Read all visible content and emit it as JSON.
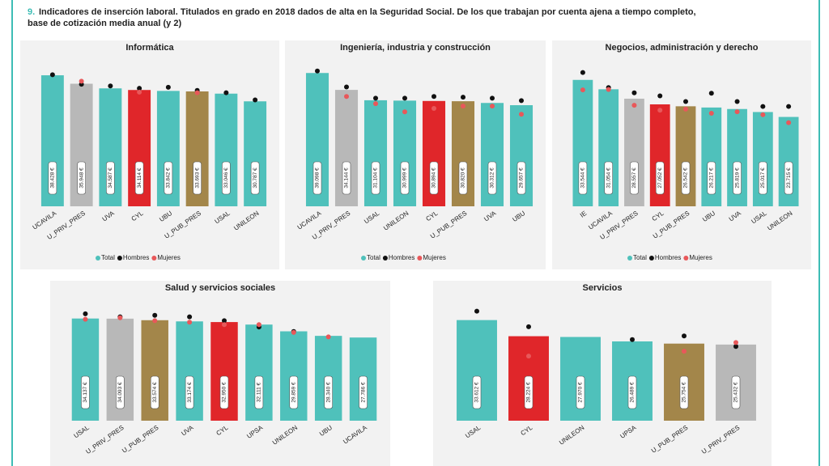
{
  "header": {
    "number": "9.",
    "lines": [
      "Indicadores de inserción laboral. Titulados en grado en 2018 dados de alta en la Seguridad Social. De los que trabajan por cuenta ajena a tiempo completo,",
      "base de cotización media anual (y 2)"
    ]
  },
  "chart_data": [
    {
      "type": "bar",
      "title": "Informática",
      "legend": true,
      "ylim": [
        0,
        42000
      ],
      "categories": [
        "UCAVILA",
        "U_PRIV_PRES",
        "UVA",
        "CYL",
        "UBU",
        "U_PUB_PRES",
        "USAL",
        "UNILEON"
      ],
      "series": [
        {
          "name": "Total",
          "color": "#4fc1bb",
          "colors": [
            "#4fc1bb",
            "#b8b8b8",
            "#4fc1bb",
            "#e0262a",
            "#4fc1bb",
            "#a3864a",
            "#4fc1bb",
            "#4fc1bb"
          ],
          "values": [
            38428,
            35948,
            34587,
            34114,
            33842,
            33693,
            33046,
            30787
          ],
          "value_labels": [
            "38.428 €",
            "35.948 €",
            "34.587 €",
            "34.114 €",
            "33.842 €",
            "33.693 €",
            "33.046 €",
            "30.787 €"
          ]
        },
        {
          "name": "Hombres",
          "color": "#111111",
          "values": [
            38600,
            35800,
            35300,
            34600,
            34900,
            34000,
            33300,
            31200
          ]
        },
        {
          "name": "Mujeres",
          "color": "#e8585a",
          "values": [
            null,
            36700,
            null,
            33500,
            null,
            33300,
            null,
            null
          ]
        }
      ]
    },
    {
      "type": "bar",
      "title": "Ingeniería, industria y construcción",
      "legend": true,
      "ylim": [
        0,
        42000
      ],
      "categories": [
        "UCAVILA",
        "U_PRIV_PRES",
        "USAL",
        "UNILEON",
        "CYL",
        "U_PUB_PRES",
        "UVA",
        "UBU"
      ],
      "series": [
        {
          "name": "Total",
          "color": "#4fc1bb",
          "colors": [
            "#4fc1bb",
            "#b8b8b8",
            "#4fc1bb",
            "#4fc1bb",
            "#e0262a",
            "#a3864a",
            "#4fc1bb",
            "#4fc1bb"
          ],
          "values": [
            39098,
            34144,
            31104,
            30999,
            30894,
            30820,
            30312,
            29657
          ],
          "value_labels": [
            "39.098 €",
            "34.144 €",
            "31.104 €",
            "30.999 €",
            "30.894 €",
            "30.820 €",
            "30.312 €",
            "29.657 €"
          ]
        },
        {
          "name": "Hombres",
          "color": "#111111",
          "values": [
            39700,
            35000,
            31700,
            31700,
            32200,
            32000,
            31700,
            31000
          ]
        },
        {
          "name": "Mujeres",
          "color": "#e8585a",
          "values": [
            null,
            32200,
            30100,
            27700,
            28700,
            29400,
            29400,
            27000
          ]
        }
      ]
    },
    {
      "type": "bar",
      "title": "Negocios, administración y derecho",
      "legend": true,
      "ylim": [
        0,
        38000
      ],
      "categories": [
        "IE",
        "UCAVILA",
        "U_PRIV_PRES",
        "CYL",
        "U_PUB_PRES",
        "UBU",
        "UVA",
        "USAL",
        "UNILEON"
      ],
      "series": [
        {
          "name": "Total",
          "color": "#4fc1bb",
          "colors": [
            "#4fc1bb",
            "#4fc1bb",
            "#b8b8b8",
            "#e0262a",
            "#a3864a",
            "#4fc1bb",
            "#4fc1bb",
            "#4fc1bb",
            "#4fc1bb"
          ],
          "values": [
            33544,
            31054,
            28557,
            27052,
            26542,
            26217,
            25819,
            25017,
            23715
          ],
          "value_labels": [
            "33.544 €",
            "31.054 €",
            "28.557 €",
            "27.052 €",
            "26.542 €",
            "26.217 €",
            "25.819 €",
            "25.017 €",
            "23.715 €"
          ]
        },
        {
          "name": "Hombres",
          "color": "#111111",
          "values": [
            35500,
            31500,
            30100,
            29300,
            27800,
            30000,
            27800,
            26500,
            26500
          ]
        },
        {
          "name": "Mujeres",
          "color": "#e8585a",
          "values": [
            30900,
            31000,
            26800,
            25500,
            25800,
            24700,
            25100,
            24300,
            22200
          ]
        }
      ]
    },
    {
      "type": "bar",
      "title": "Salud y servicios sociales",
      "legend": false,
      "ylim": [
        0,
        40000
      ],
      "categories": [
        "USAL",
        "U_PRIV_PRES",
        "U_PUB_PRES",
        "UVA",
        "CYL",
        "UPSA",
        "UNILEON",
        "UBU",
        "UCAVILA"
      ],
      "series": [
        {
          "name": "Total",
          "color": "#4fc1bb",
          "colors": [
            "#4fc1bb",
            "#b8b8b8",
            "#a3864a",
            "#4fc1bb",
            "#e0262a",
            "#4fc1bb",
            "#4fc1bb",
            "#4fc1bb",
            "#4fc1bb"
          ],
          "values": [
            34137,
            34093,
            33574,
            33174,
            32950,
            32111,
            29859,
            28340,
            27786
          ],
          "value_labels": [
            "34.137 €",
            "34.093 €",
            "33.574 €",
            "33.174 €",
            "32.950 €",
            "32.111 €",
            "29.859 €",
            "28.340 €",
            "27.786 €"
          ]
        },
        {
          "name": "Hombres",
          "color": "#111111",
          "values": [
            35700,
            34700,
            35200,
            34700,
            33400,
            31300,
            29800,
            null,
            null
          ]
        },
        {
          "name": "Mujeres",
          "color": "#e8585a",
          "values": [
            33900,
            34400,
            33400,
            32900,
            32100,
            32100,
            29500,
            28000,
            null
          ]
        }
      ]
    },
    {
      "type": "bar",
      "title": "Servicios",
      "legend": false,
      "ylim": [
        0,
        40000
      ],
      "categories": [
        "USAL",
        "CYL",
        "UNILEON",
        "UPSA",
        "U_PUB_PRES",
        "U_PRIV_PRES"
      ],
      "series": [
        {
          "name": "Total",
          "color": "#4fc1bb",
          "colors": [
            "#4fc1bb",
            "#e0262a",
            "#4fc1bb",
            "#4fc1bb",
            "#a3864a",
            "#b8b8b8"
          ],
          "values": [
            33612,
            28224,
            27970,
            26489,
            25754,
            25432
          ],
          "value_labels": [
            "33.612 €",
            "28.224 €",
            "27.970 €",
            "26.489 €",
            "25.754 €",
            "25.432 €"
          ]
        },
        {
          "name": "Hombres",
          "color": "#111111",
          "values": [
            36600,
            31400,
            null,
            27100,
            28300,
            24800
          ]
        },
        {
          "name": "Mujeres",
          "color": "#e8585a",
          "values": [
            null,
            21600,
            null,
            null,
            23200,
            26100
          ]
        }
      ]
    }
  ]
}
